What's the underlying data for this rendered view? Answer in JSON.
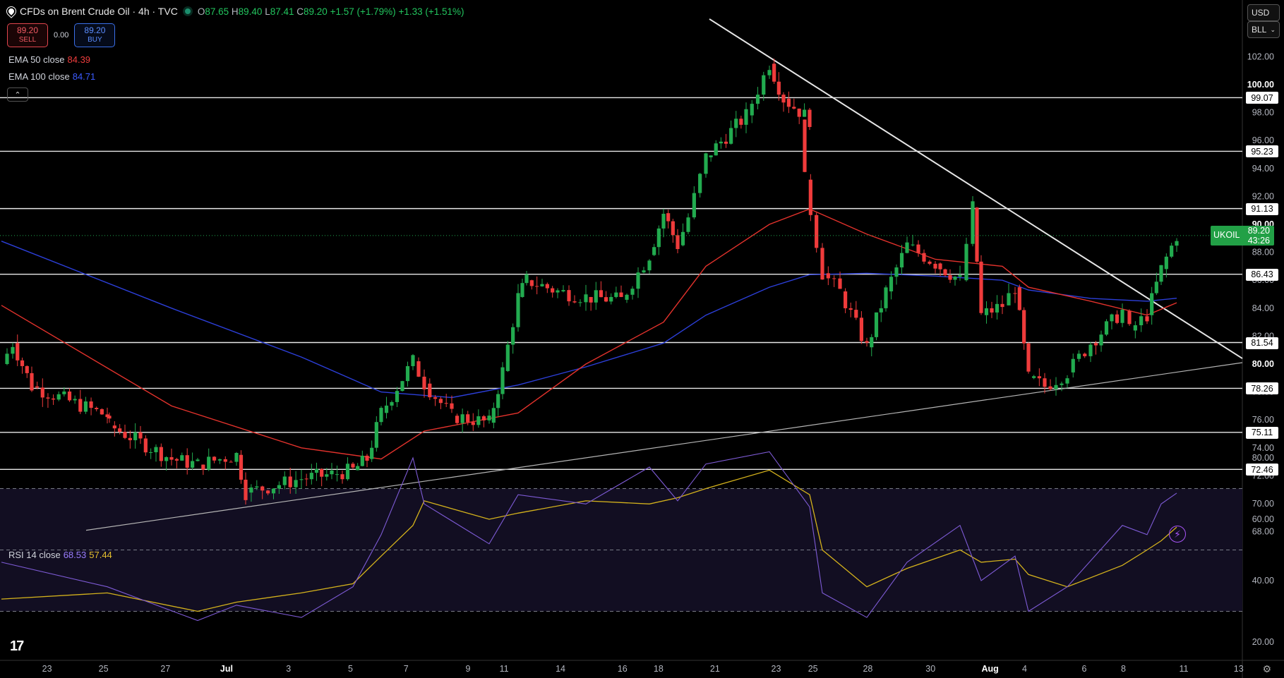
{
  "header": {
    "title": "CFDs on Brent Crude Oil · 4h · TVC",
    "ohlc": [
      {
        "k": "O",
        "v": "87.65"
      },
      {
        "k": "H",
        "v": "89.40"
      },
      {
        "k": "L",
        "v": "87.41"
      },
      {
        "k": "C",
        "v": "89.20"
      }
    ],
    "change": "+1.57 (+1.79%)",
    "change2": "+1.33 (+1.51%)"
  },
  "trade": {
    "sell_price": "89.20",
    "sell_label": "SELL",
    "spread": "0.00",
    "buy_price": "89.20",
    "buy_label": "BUY"
  },
  "indicators": {
    "ema50_label": "EMA 50 close",
    "ema50_value": "84.39",
    "ema100_label": "EMA 100 close",
    "ema100_value": "84.71",
    "rsi_label": "RSI 14 close",
    "rsi_value": "68.53",
    "rsi_ma_value": "57.44"
  },
  "selects": {
    "currency": "USD",
    "unit": "BLL"
  },
  "symbol_label": {
    "name": "UKOIL",
    "price": "89.20",
    "timer": "43:26"
  },
  "level_labels": [
    "99.07",
    "95.23",
    "91.13",
    "86.43",
    "81.54",
    "78.26",
    "75.11",
    "72.46"
  ],
  "chart_data": [
    {
      "type": "candlestick",
      "title": "CFDs on Brent Crude Oil · 4h · TVC",
      "y_range": [
        67,
        103
      ],
      "y_ticks": [
        "68.00",
        "70.00",
        "72.00",
        "74.00",
        "76.00",
        "78.00",
        "80.00",
        "82.00",
        "84.00",
        "86.00",
        "88.00",
        "90.00",
        "92.00",
        "94.00",
        "96.00",
        "98.00",
        "100.00",
        "102.00"
      ],
      "x_tick_labels": [
        "23",
        "25",
        "27",
        "Jul",
        "3",
        "5",
        "7",
        "9",
        "11",
        "14",
        "16",
        "18",
        "21",
        "23",
        "25",
        "28",
        "30",
        "Aug",
        "4",
        "6",
        "8",
        "11",
        "13"
      ],
      "close_path": [
        [
          "Jun 21",
          80.0
        ],
        [
          "Jun 22",
          81.5
        ],
        [
          "Jun 24",
          78.4
        ],
        [
          "Jun 25",
          76.3
        ],
        [
          "Jun 26",
          75.6
        ],
        [
          "Jun 27",
          73.2
        ],
        [
          "Jun 28",
          72.8
        ],
        [
          "Jul 1",
          73.5
        ],
        [
          "Jul 2",
          70.8
        ],
        [
          "Jul 3",
          71.8
        ],
        [
          "Jul 4",
          72.1
        ],
        [
          "Jul 5",
          72.4
        ],
        [
          "Jul 6",
          73.2
        ],
        [
          "Jul 7",
          76.5
        ],
        [
          "Jul 8",
          80.2
        ],
        [
          "Jul 9",
          78.6
        ],
        [
          "Jul 10",
          76.3
        ],
        [
          "Jul 11",
          75.8
        ],
        [
          "Jul 12",
          79.5
        ],
        [
          "Jul 13",
          84.8
        ],
        [
          "Jul 14",
          86.0
        ],
        [
          "Jul 15",
          85.2
        ],
        [
          "Jul 16",
          84.8
        ],
        [
          "Jul 17",
          84.6
        ],
        [
          "Jul 18",
          87.8
        ],
        [
          "Jul 19",
          90.8
        ],
        [
          "Jul 20",
          88.5
        ],
        [
          "Jul 21",
          90.5
        ],
        [
          "Jul 22",
          94.8
        ],
        [
          "Jul 23",
          97.8
        ],
        [
          "Jul 24",
          101.5
        ],
        [
          "Jul 24b",
          99.0
        ],
        [
          "Jul 25",
          97.5
        ],
        [
          "Jul 25b",
          93.2
        ],
        [
          "Jul 26",
          86.5
        ],
        [
          "Jul 27",
          85.2
        ],
        [
          "Jul 28",
          81.2
        ],
        [
          "Jul 29",
          85.2
        ],
        [
          "Jul 30",
          88.5
        ],
        [
          "Jul 31",
          87.2
        ],
        [
          "Aug 1",
          86.0
        ],
        [
          "Aug 1b",
          91.2
        ],
        [
          "Aug 2",
          83.5
        ],
        [
          "Aug 3",
          84.2
        ],
        [
          "Aug 4",
          85.5
        ],
        [
          "Aug 5",
          79.0
        ],
        [
          "Aug 5b",
          78.4
        ],
        [
          "Aug 6",
          79.4
        ],
        [
          "Aug 7",
          81.5
        ],
        [
          "Aug 8",
          83.8
        ],
        [
          "Aug 8b",
          82.4
        ],
        [
          "Aug 9",
          83.5
        ],
        [
          "Aug 10",
          86.8
        ],
        [
          "Aug 11",
          89.2
        ]
      ],
      "last_close": 89.2,
      "horizontal_levels": [
        99.07,
        95.23,
        91.13,
        86.43,
        81.54,
        78.26,
        75.11,
        72.46
      ],
      "trendlines": [
        {
          "name": "Descending trendline",
          "from": [
            "Jul 22",
            104.7
          ],
          "to": [
            "Aug 13",
            80.4
          ]
        },
        {
          "name": "Ascending trendline",
          "from": [
            "Jun 28",
            68.1
          ],
          "to": [
            "Aug 13",
            80.1
          ]
        }
      ],
      "ema50_path": [
        [
          "Jun 21",
          84.2
        ],
        [
          "Jun 27",
          77.0
        ],
        [
          "Jul 3",
          74.0
        ],
        [
          "Jul 7",
          73.2
        ],
        [
          "Jul 9",
          75.2
        ],
        [
          "Jul 13",
          76.5
        ],
        [
          "Jul 16",
          80.0
        ],
        [
          "Jul 19",
          83.0
        ],
        [
          "Jul 22",
          87.0
        ],
        [
          "Jul 24",
          90.0
        ],
        [
          "Jul 25",
          91.1
        ],
        [
          "Jul 28",
          89.3
        ],
        [
          "Jul 31",
          87.5
        ],
        [
          "Aug 3",
          87.0
        ],
        [
          "Aug 5",
          85.5
        ],
        [
          "Aug 7",
          84.5
        ],
        [
          "Aug 9",
          83.5
        ],
        [
          "Aug 11",
          84.39
        ]
      ],
      "ema100_path": [
        [
          "Jun 21",
          88.8
        ],
        [
          "Jun 27",
          84.0
        ],
        [
          "Jul 3",
          80.5
        ],
        [
          "Jul 7",
          78.0
        ],
        [
          "Jul 10",
          77.6
        ],
        [
          "Jul 13",
          78.5
        ],
        [
          "Jul 16",
          79.8
        ],
        [
          "Jul 19",
          81.5
        ],
        [
          "Jul 22",
          83.5
        ],
        [
          "Jul 24",
          85.5
        ],
        [
          "Jul 25",
          86.4
        ],
        [
          "Jul 28",
          86.5
        ],
        [
          "Jul 31",
          86.3
        ],
        [
          "Aug 3",
          86.0
        ],
        [
          "Aug 5",
          85.3
        ],
        [
          "Aug 7",
          84.7
        ],
        [
          "Aug 9",
          84.5
        ],
        [
          "Aug 11",
          84.71
        ]
      ]
    },
    {
      "type": "line",
      "title": "RSI 14 close",
      "y_range": [
        17,
        90
      ],
      "y_ticks": [
        "20.00",
        "40.00",
        "60.00",
        "80.00"
      ],
      "bands": [
        30,
        50,
        70
      ],
      "rsi_path": [
        [
          "Jun 21",
          46
        ],
        [
          "Jun 25",
          38
        ],
        [
          "Jun 28",
          27
        ],
        [
          "Jul 1",
          32
        ],
        [
          "Jul 3",
          28
        ],
        [
          "Jul 5",
          38
        ],
        [
          "Jul 7",
          55
        ],
        [
          "Jul 8",
          80
        ],
        [
          "Jul 9",
          65
        ],
        [
          "Jul 11",
          52
        ],
        [
          "Jul 13",
          68
        ],
        [
          "Jul 16",
          65
        ],
        [
          "Jul 18",
          77
        ],
        [
          "Jul 20",
          66
        ],
        [
          "Jul 22",
          78
        ],
        [
          "Jul 24",
          82
        ],
        [
          "Jul 25",
          64
        ],
        [
          "Jul 26",
          36
        ],
        [
          "Jul 28",
          28
        ],
        [
          "Jul 30",
          46
        ],
        [
          "Aug 1",
          58
        ],
        [
          "Aug 2",
          40
        ],
        [
          "Aug 4",
          48
        ],
        [
          "Aug 5",
          30
        ],
        [
          "Aug 6",
          38
        ],
        [
          "Aug 8",
          58
        ],
        [
          "Aug 9",
          55
        ],
        [
          "Aug 10",
          65
        ],
        [
          "Aug 11",
          68.53
        ]
      ],
      "rsi_ma_path": [
        [
          "Jun 21",
          34
        ],
        [
          "Jun 25",
          36
        ],
        [
          "Jun 28",
          30
        ],
        [
          "Jul 1",
          33
        ],
        [
          "Jul 3",
          36
        ],
        [
          "Jul 5",
          39
        ],
        [
          "Jul 7",
          48
        ],
        [
          "Jul 8",
          58
        ],
        [
          "Jul 9",
          66
        ],
        [
          "Jul 11",
          60
        ],
        [
          "Jul 13",
          62
        ],
        [
          "Jul 16",
          66
        ],
        [
          "Jul 18",
          65
        ],
        [
          "Jul 20",
          67
        ],
        [
          "Jul 22",
          70
        ],
        [
          "Jul 24",
          76
        ],
        [
          "Jul 25",
          68
        ],
        [
          "Jul 26",
          50
        ],
        [
          "Jul 28",
          38
        ],
        [
          "Jul 30",
          44
        ],
        [
          "Aug 1",
          50
        ],
        [
          "Aug 2",
          46
        ],
        [
          "Aug 4",
          47
        ],
        [
          "Aug 5",
          42
        ],
        [
          "Aug 6",
          38
        ],
        [
          "Aug 8",
          45
        ],
        [
          "Aug 9",
          50
        ],
        [
          "Aug 10",
          53
        ],
        [
          "Aug 11",
          57.44
        ]
      ]
    }
  ],
  "colors": {
    "up": "#22ab4f",
    "down": "#ef3b3b",
    "ema50": "#e3322c",
    "ema100": "#2c3fd9",
    "rsi": "#7e5bd6",
    "rsi_ma": "#d4b21c",
    "level": "#e8e8e8",
    "grid": "#2a2e39"
  }
}
